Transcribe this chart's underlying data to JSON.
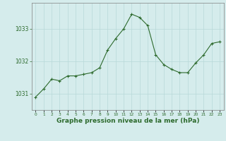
{
  "x": [
    0,
    1,
    2,
    3,
    4,
    5,
    6,
    7,
    8,
    9,
    10,
    11,
    12,
    13,
    14,
    15,
    16,
    17,
    18,
    19,
    20,
    21,
    22,
    23
  ],
  "y": [
    1030.9,
    1031.15,
    1031.45,
    1031.4,
    1031.55,
    1031.55,
    1031.6,
    1031.65,
    1031.8,
    1032.35,
    1032.7,
    1033.0,
    1033.45,
    1033.35,
    1033.1,
    1032.2,
    1031.9,
    1031.75,
    1031.65,
    1031.65,
    1031.95,
    1032.2,
    1032.55,
    1032.6
  ],
  "line_color": "#2d6a2d",
  "marker": "+",
  "marker_size": 3,
  "bg_color": "#d5ecec",
  "grid_color": "#b8d8d8",
  "axis_label_color": "#2d6a2d",
  "tick_color": "#2d6a2d",
  "spine_color": "#808080",
  "title": "Graphe pression niveau de la mer (hPa)",
  "xlabel_fontsize": 6.5,
  "ylim": [
    1030.5,
    1033.8
  ],
  "yticks": [
    1031,
    1032,
    1033
  ],
  "xlim": [
    -0.5,
    23.5
  ],
  "xticks": [
    0,
    1,
    2,
    3,
    4,
    5,
    6,
    7,
    8,
    9,
    10,
    11,
    12,
    13,
    14,
    15,
    16,
    17,
    18,
    19,
    20,
    21,
    22,
    23
  ]
}
